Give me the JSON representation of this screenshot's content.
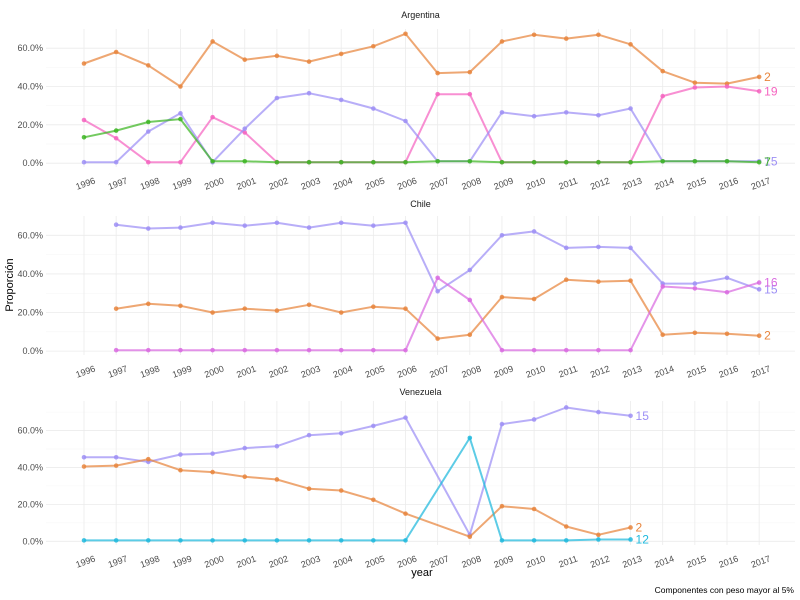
{
  "chart_data": {
    "type": "line",
    "ylabel": "Proporción",
    "xlabel": "year",
    "caption": "Componentes con peso mayor al 5%",
    "x_categories": [
      "1996",
      "1997",
      "1998",
      "1999",
      "2000",
      "2001",
      "2002",
      "2003",
      "2004",
      "2005",
      "2006",
      "2007",
      "2008",
      "2009",
      "2010",
      "2011",
      "2012",
      "2013",
      "2014",
      "2015",
      "2016",
      "2017"
    ],
    "grid": true,
    "legend": "none",
    "panels": [
      {
        "title": "Argentina",
        "ylim": [
          -0.02,
          0.7
        ],
        "yticks": [
          0,
          0.2,
          0.4,
          0.6
        ],
        "ytick_labels": [
          "0.0%",
          "20.0%",
          "40.0%",
          "60.0%"
        ],
        "series": [
          {
            "name": "2",
            "color": "#E8853D",
            "end_label": "2",
            "x": [
              1996,
              1997,
              1998,
              1999,
              2000,
              2001,
              2002,
              2003,
              2004,
              2005,
              2006,
              2007,
              2008,
              2009,
              2010,
              2011,
              2012,
              2013,
              2014,
              2015,
              2016,
              2017
            ],
            "values": [
              0.52,
              0.58,
              0.51,
              0.4,
              0.635,
              0.54,
              0.56,
              0.53,
              0.57,
              0.61,
              0.675,
              0.47,
              0.475,
              0.635,
              0.67,
              0.65,
              0.67,
              0.62,
              0.48,
              0.42,
              0.415,
              0.45
            ]
          },
          {
            "name": "19",
            "color": "#F564C0",
            "end_label": "19",
            "x": [
              1996,
              1997,
              1998,
              1999,
              2000,
              2001,
              2002,
              2003,
              2004,
              2005,
              2006,
              2007,
              2008,
              2009,
              2010,
              2011,
              2012,
              2013,
              2014,
              2015,
              2016,
              2017
            ],
            "values": [
              0.225,
              0.13,
              0.005,
              0.005,
              0.24,
              0.16,
              0.005,
              0.005,
              0.005,
              0.005,
              0.005,
              0.36,
              0.36,
              0.005,
              0.005,
              0.005,
              0.005,
              0.005,
              0.35,
              0.395,
              0.4,
              0.375
            ]
          },
          {
            "name": "15",
            "color": "#9D8FF5",
            "end_label": "15",
            "x": [
              1996,
              1997,
              1998,
              1999,
              2000,
              2001,
              2002,
              2003,
              2004,
              2005,
              2006,
              2007,
              2008,
              2009,
              2010,
              2011,
              2012,
              2013,
              2014,
              2015,
              2016,
              2017
            ],
            "values": [
              0.005,
              0.005,
              0.165,
              0.26,
              0.005,
              0.18,
              0.34,
              0.365,
              0.33,
              0.285,
              0.22,
              0.01,
              0.01,
              0.265,
              0.245,
              0.265,
              0.25,
              0.285,
              0.01,
              0.01,
              0.01,
              0.01
            ]
          },
          {
            "name": "7",
            "color": "#3DB523",
            "end_label": "7",
            "x": [
              1996,
              1997,
              1998,
              1999,
              2000,
              2001,
              2002,
              2003,
              2004,
              2005,
              2006,
              2007,
              2008,
              2009,
              2010,
              2011,
              2012,
              2013,
              2014,
              2015,
              2016,
              2017
            ],
            "values": [
              0.135,
              0.17,
              0.215,
              0.23,
              0.01,
              0.01,
              0.005,
              0.005,
              0.005,
              0.005,
              0.005,
              0.01,
              0.01,
              0.005,
              0.005,
              0.005,
              0.005,
              0.005,
              0.01,
              0.01,
              0.01,
              0.005
            ]
          }
        ]
      },
      {
        "title": "Chile",
        "ylim": [
          -0.02,
          0.7
        ],
        "yticks": [
          0,
          0.2,
          0.4,
          0.6
        ],
        "ytick_labels": [
          "0.0%",
          "20.0%",
          "40.0%",
          "60.0%"
        ],
        "series": [
          {
            "name": "15",
            "color": "#9D8FF5",
            "end_label": "15",
            "x": [
              1997,
              1998,
              1999,
              2000,
              2001,
              2002,
              2003,
              2004,
              2005,
              2006,
              2007,
              2008,
              2009,
              2010,
              2011,
              2012,
              2013,
              2014,
              2015,
              2016,
              2017
            ],
            "values": [
              0.655,
              0.635,
              0.64,
              0.665,
              0.65,
              0.665,
              0.64,
              0.665,
              0.65,
              0.665,
              0.31,
              0.42,
              0.6,
              0.62,
              0.535,
              0.54,
              0.535,
              0.35,
              0.35,
              0.38,
              0.32
            ]
          },
          {
            "name": "2",
            "color": "#E8853D",
            "end_label": "2",
            "x": [
              1997,
              1998,
              1999,
              2000,
              2001,
              2002,
              2003,
              2004,
              2005,
              2006,
              2007,
              2008,
              2009,
              2010,
              2011,
              2012,
              2013,
              2014,
              2015,
              2016,
              2017
            ],
            "values": [
              0.22,
              0.245,
              0.235,
              0.2,
              0.22,
              0.21,
              0.24,
              0.2,
              0.23,
              0.22,
              0.065,
              0.085,
              0.28,
              0.27,
              0.37,
              0.36,
              0.365,
              0.085,
              0.095,
              0.09,
              0.08
            ]
          },
          {
            "name": "16",
            "color": "#D96BE0",
            "end_label": "16",
            "x": [
              1997,
              1998,
              1999,
              2000,
              2001,
              2002,
              2003,
              2004,
              2005,
              2006,
              2007,
              2008,
              2009,
              2010,
              2011,
              2012,
              2013,
              2014,
              2015,
              2016,
              2017
            ],
            "values": [
              0.005,
              0.005,
              0.005,
              0.005,
              0.005,
              0.005,
              0.005,
              0.005,
              0.005,
              0.005,
              0.38,
              0.265,
              0.005,
              0.005,
              0.005,
              0.005,
              0.005,
              0.335,
              0.325,
              0.305,
              0.355
            ]
          }
        ]
      },
      {
        "title": "Venezuela",
        "ylim": [
          -0.02,
          0.76
        ],
        "yticks": [
          0,
          0.2,
          0.4,
          0.6
        ],
        "ytick_labels": [
          "0.0%",
          "20.0%",
          "40.0%",
          "60.0%"
        ],
        "series": [
          {
            "name": "15",
            "color": "#9D8FF5",
            "end_label": "15",
            "x": [
              1996,
              1997,
              1998,
              1999,
              2000,
              2001,
              2002,
              2003,
              2004,
              2005,
              2006,
              2008,
              2009,
              2010,
              2011,
              2012,
              2013
            ],
            "values": [
              0.455,
              0.455,
              0.43,
              0.47,
              0.475,
              0.505,
              0.515,
              0.575,
              0.585,
              0.625,
              0.67,
              0.035,
              0.635,
              0.66,
              0.725,
              0.7,
              0.68
            ]
          },
          {
            "name": "2",
            "color": "#E8853D",
            "end_label": "2",
            "x": [
              1996,
              1997,
              1998,
              1999,
              2000,
              2001,
              2002,
              2003,
              2004,
              2005,
              2006,
              2008,
              2009,
              2010,
              2011,
              2012,
              2013
            ],
            "values": [
              0.405,
              0.41,
              0.445,
              0.385,
              0.375,
              0.35,
              0.335,
              0.285,
              0.275,
              0.225,
              0.15,
              0.025,
              0.19,
              0.175,
              0.08,
              0.035,
              0.075
            ]
          },
          {
            "name": "12",
            "color": "#1FB9DD",
            "end_label": "12",
            "x": [
              1996,
              1997,
              1998,
              1999,
              2000,
              2001,
              2002,
              2003,
              2004,
              2005,
              2006,
              2008,
              2009,
              2010,
              2011,
              2012,
              2013
            ],
            "values": [
              0.005,
              0.005,
              0.005,
              0.005,
              0.005,
              0.005,
              0.005,
              0.005,
              0.005,
              0.005,
              0.005,
              0.56,
              0.005,
              0.005,
              0.005,
              0.01,
              0.01
            ]
          }
        ]
      }
    ]
  }
}
